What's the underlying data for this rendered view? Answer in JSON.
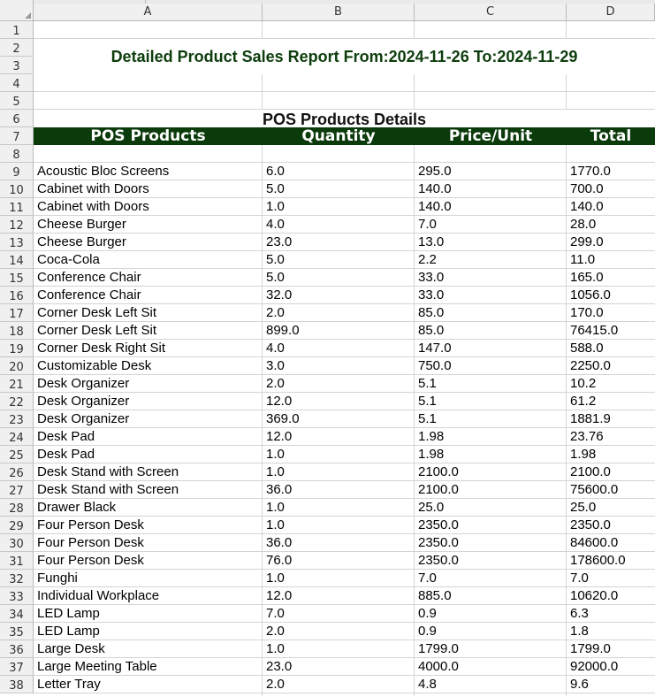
{
  "columns": [
    "A",
    "B",
    "C",
    "D"
  ],
  "row_numbers": [
    "1",
    "2",
    "3",
    "4",
    "5",
    "6",
    "7",
    "8",
    "9",
    "10",
    "11",
    "12",
    "13",
    "14",
    "15",
    "16",
    "17",
    "18",
    "19",
    "20",
    "21",
    "22",
    "23",
    "24",
    "25",
    "26",
    "27",
    "28",
    "29",
    "30",
    "31",
    "32",
    "33",
    "34",
    "35",
    "36",
    "37",
    "38"
  ],
  "title": "Detailed Product Sales Report From:2024-11-26    To:2024-11-29",
  "subtitle": "POS Products Details",
  "headers": [
    "POS Products",
    "Quantity",
    "Price/Unit",
    "Total"
  ],
  "rows": [
    [
      "Acoustic Bloc Screens",
      "6.0",
      "295.0",
      "1770.0"
    ],
    [
      "Cabinet with Doors",
      "5.0",
      "140.0",
      "700.0"
    ],
    [
      "Cabinet with Doors",
      "1.0",
      "140.0",
      "140.0"
    ],
    [
      "Cheese Burger",
      "4.0",
      "7.0",
      "28.0"
    ],
    [
      "Cheese Burger",
      "23.0",
      "13.0",
      "299.0"
    ],
    [
      "Coca-Cola",
      "5.0",
      "2.2",
      "11.0"
    ],
    [
      "Conference Chair",
      "5.0",
      "33.0",
      "165.0"
    ],
    [
      "Conference Chair",
      "32.0",
      "33.0",
      "1056.0"
    ],
    [
      "Corner Desk Left Sit",
      "2.0",
      "85.0",
      "170.0"
    ],
    [
      "Corner Desk Left Sit",
      "899.0",
      "85.0",
      "76415.0"
    ],
    [
      "Corner Desk Right Sit",
      "4.0",
      "147.0",
      "588.0"
    ],
    [
      "Customizable Desk",
      "3.0",
      "750.0",
      "2250.0"
    ],
    [
      "Desk Organizer",
      "2.0",
      "5.1",
      "10.2"
    ],
    [
      "Desk Organizer",
      "12.0",
      "5.1",
      "61.2"
    ],
    [
      "Desk Organizer",
      "369.0",
      "5.1",
      "1881.9"
    ],
    [
      "Desk Pad",
      "12.0",
      "1.98",
      "23.76"
    ],
    [
      "Desk Pad",
      "1.0",
      "1.98",
      "1.98"
    ],
    [
      "Desk Stand with Screen",
      "1.0",
      "2100.0",
      "2100.0"
    ],
    [
      "Desk Stand with Screen",
      "36.0",
      "2100.0",
      "75600.0"
    ],
    [
      "Drawer Black",
      "1.0",
      "25.0",
      "25.0"
    ],
    [
      "Four Person Desk",
      "1.0",
      "2350.0",
      "2350.0"
    ],
    [
      "Four Person Desk",
      "36.0",
      "2350.0",
      "84600.0"
    ],
    [
      "Four Person Desk",
      "76.0",
      "2350.0",
      "178600.0"
    ],
    [
      "Funghi",
      "1.0",
      "7.0",
      "7.0"
    ],
    [
      "Individual Workplace",
      "12.0",
      "885.0",
      "10620.0"
    ],
    [
      "LED Lamp",
      "7.0",
      "0.9",
      "6.3"
    ],
    [
      "LED Lamp",
      "2.0",
      "0.9",
      "1.8"
    ],
    [
      "Large Desk",
      "1.0",
      "1799.0",
      "1799.0"
    ],
    [
      "Large Meeting Table",
      "23.0",
      "4000.0",
      "92000.0"
    ],
    [
      "Letter Tray",
      "2.0",
      "4.8",
      "9.6"
    ]
  ],
  "colors": {
    "header_bg": "#0b3a0b",
    "title_text": "#0d3d0d"
  }
}
